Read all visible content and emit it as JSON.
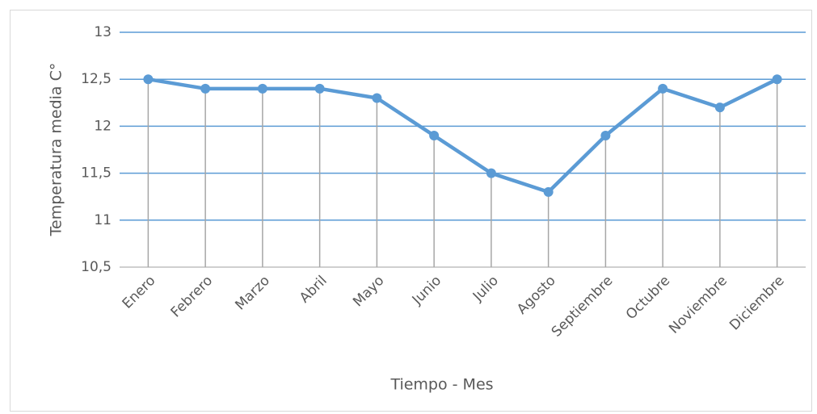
{
  "chart_data": {
    "type": "line",
    "y_label": "Temperatura media C°",
    "x_label": "Tiempo - Mes",
    "categories": [
      "Enero",
      "Febrero",
      "Marzo",
      "Abril",
      "Mayo",
      "Junio",
      "Julio",
      "Agosto",
      "Septiembre",
      "Octubre",
      "Noviembre",
      "Diciembre"
    ],
    "values": [
      12.5,
      12.4,
      12.4,
      12.4,
      12.3,
      11.9,
      11.5,
      11.3,
      11.9,
      12.4,
      12.2,
      12.5
    ],
    "color": "#5b9bd5",
    "drop_lines": true,
    "ylim": [
      10.5,
      13
    ],
    "yticks": [
      {
        "value": 10.5,
        "label": "10,5"
      },
      11,
      {
        "value": 11.5,
        "label": "11,5"
      },
      12,
      {
        "value": 12.5,
        "label": "12,5"
      },
      13
    ],
    "grid": true
  }
}
